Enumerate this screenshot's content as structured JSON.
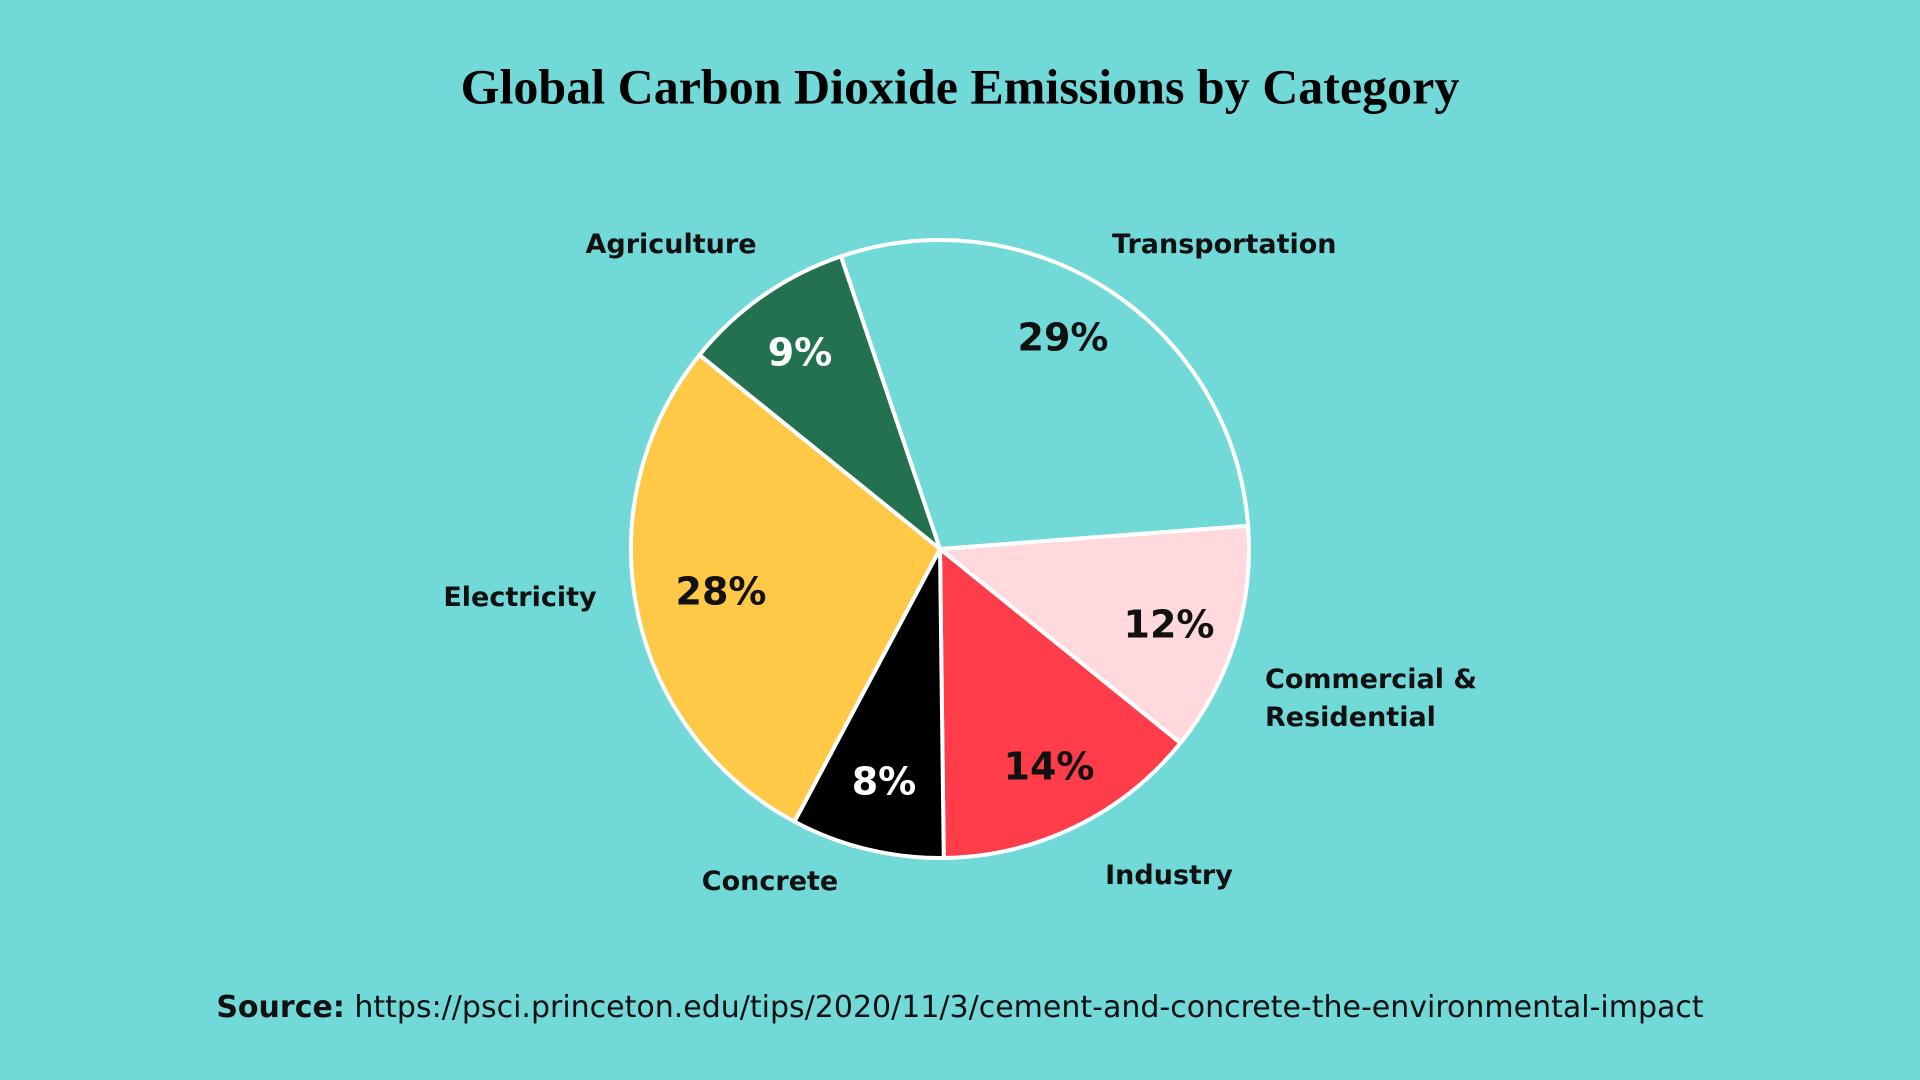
{
  "chart_data": {
    "type": "pie",
    "title": "Global Carbon Dioxide Emissions by Category",
    "categories": [
      "Transportation",
      "Commercial & Residential",
      "Industry",
      "Concrete",
      "Electricity",
      "Agriculture"
    ],
    "values": [
      29,
      12,
      14,
      8,
      28,
      9
    ],
    "value_labels": [
      "29%",
      "12%",
      "14%",
      "8%",
      "28%",
      "9%"
    ],
    "colors": [
      "#72d9d9",
      "#ffd9dc",
      "#ff3d4a",
      "#000000",
      "#ffc846",
      "#237150"
    ],
    "source": {
      "label": "Source:",
      "text": "https://psci.princeton.edu/tips/2020/11/3/cement-and-concrete-the-environmental-impact"
    }
  }
}
